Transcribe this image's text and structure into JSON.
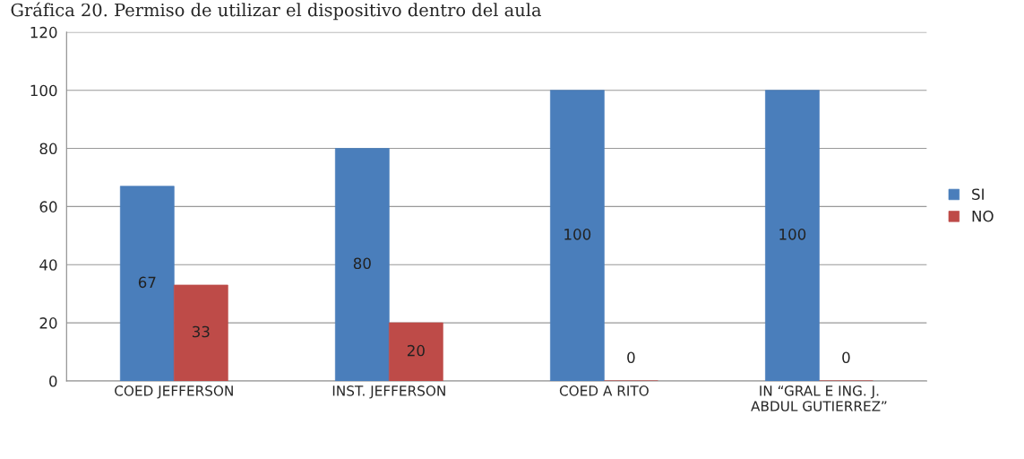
{
  "chart_data": {
    "type": "bar",
    "title": "Gráfica 20. Permiso de utilizar el dispositivo dentro del aula",
    "categories": [
      "COED JEFFERSON",
      "INST. JEFFERSON",
      "COED A RITO",
      "IN “GRAL E ING. J.\nABDUL GUTIERREZ”"
    ],
    "series": [
      {
        "name": "SI",
        "color": "#4a7ebb",
        "values": [
          67,
          80,
          100,
          100
        ]
      },
      {
        "name": "NO",
        "color": "#be4b48",
        "values": [
          33,
          20,
          0,
          0
        ]
      }
    ],
    "ylim": [
      0,
      120
    ],
    "yticks": [
      0,
      20,
      40,
      60,
      80,
      100,
      120
    ],
    "grid": "y",
    "legend": "right",
    "data_labels": true
  }
}
